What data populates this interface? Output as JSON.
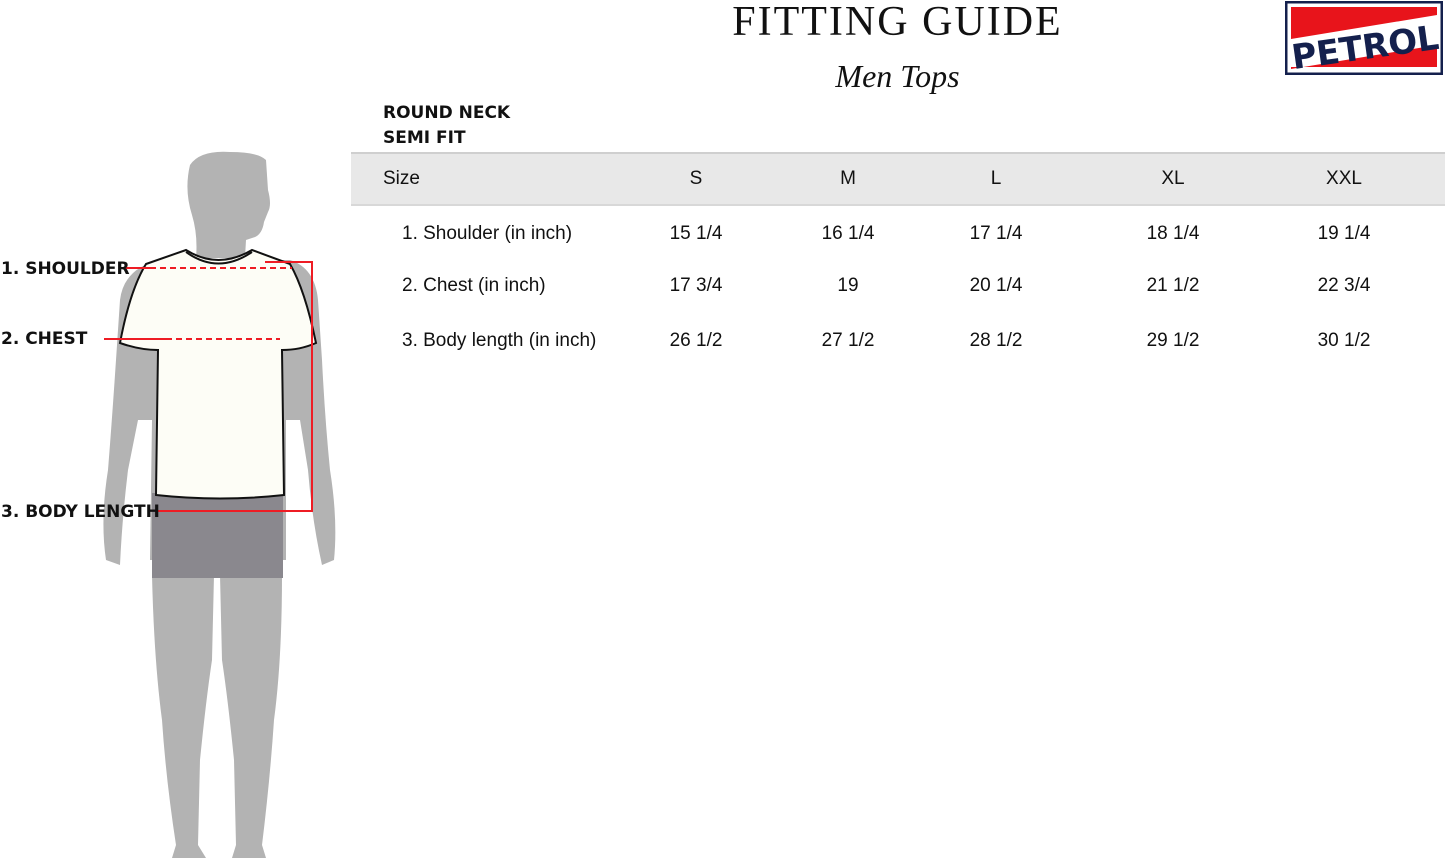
{
  "title": "FITTING GUIDE",
  "subtitle": "Men Tops",
  "brand": {
    "logo_text": "PETROL",
    "colors": {
      "red": "#e8141b",
      "navy": "#14204d"
    }
  },
  "style": {
    "neck": "ROUND NECK",
    "fit": "SEMI FIT"
  },
  "figure_labels": {
    "shoulder": "1. SHOULDER",
    "chest": "2. CHEST",
    "body_length": "3. BODY LENGTH"
  },
  "table": {
    "header": [
      "Size",
      "S",
      "M",
      "L",
      "XL",
      "XXL"
    ],
    "rows": [
      {
        "label": "1. Shoulder (in inch)",
        "values": [
          "15 1/4",
          "16 1/4",
          "17 1/4",
          "18 1/4",
          "19 1/4"
        ]
      },
      {
        "label": "2. Chest (in inch)",
        "values": [
          "17 3/4",
          "19",
          "20 1/4",
          "21 1/2",
          "22 3/4"
        ]
      },
      {
        "label": "3. Body length (in inch)",
        "values": [
          "26 1/2",
          "27 1/2",
          "28 1/2",
          "29 1/2",
          "30 1/2"
        ]
      }
    ]
  },
  "colors": {
    "measure_line": "#ee1c24",
    "silhouette": "#b3b3b3",
    "shorts": "#8a888e",
    "shirt": "#fdfdf6",
    "header_band": "#e8e8e8"
  }
}
